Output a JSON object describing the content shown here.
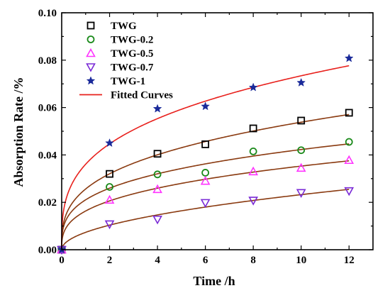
{
  "chart_data": {
    "type": "scatter",
    "title": "",
    "xlabel": "Time /h",
    "ylabel": "Absorption Rate /%",
    "xlim": [
      0,
      13
    ],
    "ylim": [
      0,
      0.1
    ],
    "xticks": [
      "0",
      "2",
      "4",
      "6",
      "8",
      "10",
      "12"
    ],
    "yticks": [
      "0.00",
      "0.02",
      "0.04",
      "0.06",
      "0.08",
      "0.10"
    ],
    "grid": false,
    "legend_position": "top-left",
    "series": [
      {
        "name": "TWG",
        "marker": "square",
        "color": "#000000",
        "x": [
          0,
          2,
          4,
          6,
          8,
          10,
          12
        ],
        "y": [
          0,
          0.032,
          0.0405,
          0.0445,
          0.0512,
          0.0545,
          0.0578
        ],
        "fit_y": [
          0,
          0.0325,
          0.0395,
          0.045,
          0.05,
          0.054,
          0.0578
        ]
      },
      {
        "name": "TWG-0.2",
        "marker": "circle",
        "color": "#1a8a1a",
        "x": [
          0,
          2,
          4,
          6,
          8,
          10,
          12
        ],
        "y": [
          0,
          0.0265,
          0.0318,
          0.0325,
          0.0415,
          0.042,
          0.0455
        ],
        "fit_y": [
          0,
          0.026,
          0.032,
          0.0362,
          0.0395,
          0.0422,
          0.0448
        ]
      },
      {
        "name": "TWG-0.5",
        "marker": "triangle-up",
        "color": "#ff33ff",
        "x": [
          0,
          2,
          4,
          6,
          8,
          10,
          12
        ],
        "y": [
          0,
          0.021,
          0.0255,
          0.029,
          0.033,
          0.0345,
          0.0378
        ],
        "fit_y": [
          0,
          0.0205,
          0.026,
          0.03,
          0.033,
          0.0352,
          0.0372
        ]
      },
      {
        "name": "TWG-0.7",
        "marker": "triangle-down",
        "color": "#7a2ad6",
        "x": [
          0,
          2,
          4,
          6,
          8,
          10,
          12
        ],
        "y": [
          0,
          0.0108,
          0.0128,
          0.0198,
          0.0208,
          0.024,
          0.0248
        ],
        "fit_y": [
          0,
          0.0105,
          0.0145,
          0.0178,
          0.0208,
          0.0233,
          0.0257
        ]
      },
      {
        "name": "TWG-1",
        "marker": "star",
        "color": "#1a2a9a",
        "x": [
          0,
          2,
          4,
          6,
          8,
          10,
          12
        ],
        "y": [
          0,
          0.045,
          0.0595,
          0.0605,
          0.0685,
          0.0705,
          0.0808
        ],
        "fit_y": [
          0,
          0.045,
          0.0545,
          0.063,
          0.0685,
          0.0735,
          0.0778
        ]
      }
    ],
    "fit_legend": {
      "name": "Fitted Curves",
      "color": "#e8201c"
    }
  }
}
